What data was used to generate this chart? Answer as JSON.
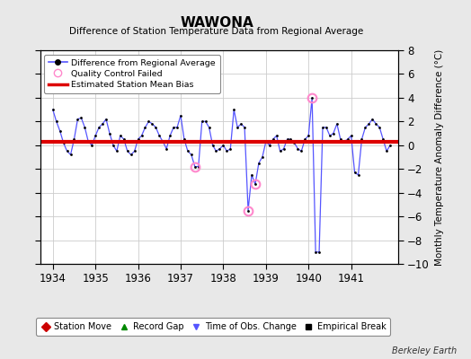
{
  "title": "WAWONA",
  "subtitle": "Difference of Station Temperature Data from Regional Average",
  "ylabel": "Monthly Temperature Anomaly Difference (°C)",
  "ylim": [
    -10,
    8
  ],
  "yticks": [
    -10,
    -8,
    -6,
    -4,
    -2,
    0,
    2,
    4,
    6,
    8
  ],
  "xlim": [
    1933.7,
    1942.1
  ],
  "xticks": [
    1934,
    1935,
    1936,
    1937,
    1938,
    1939,
    1940,
    1941
  ],
  "bg_color": "#e8e8e8",
  "plot_bg_color": "#ffffff",
  "line_color": "#5555ff",
  "marker_color": "#000000",
  "bias_color": "#dd0000",
  "bias_value": 0.3,
  "qc_fail_color": "#ff88cc",
  "time_series": [
    [
      1934.0,
      3.0
    ],
    [
      1934.083,
      2.0
    ],
    [
      1934.167,
      1.2
    ],
    [
      1934.25,
      0.2
    ],
    [
      1934.333,
      -0.5
    ],
    [
      1934.417,
      -0.8
    ],
    [
      1934.5,
      0.5
    ],
    [
      1934.583,
      2.2
    ],
    [
      1934.667,
      2.3
    ],
    [
      1934.75,
      1.5
    ],
    [
      1934.833,
      0.3
    ],
    [
      1934.917,
      0.0
    ],
    [
      1935.0,
      0.8
    ],
    [
      1935.083,
      1.5
    ],
    [
      1935.167,
      1.8
    ],
    [
      1935.25,
      2.2
    ],
    [
      1935.333,
      1.0
    ],
    [
      1935.417,
      0.0
    ],
    [
      1935.5,
      -0.5
    ],
    [
      1935.583,
      0.8
    ],
    [
      1935.667,
      0.5
    ],
    [
      1935.75,
      -0.5
    ],
    [
      1935.833,
      -0.8
    ],
    [
      1935.917,
      -0.5
    ],
    [
      1936.0,
      0.5
    ],
    [
      1936.083,
      0.8
    ],
    [
      1936.167,
      1.5
    ],
    [
      1936.25,
      2.0
    ],
    [
      1936.333,
      1.8
    ],
    [
      1936.417,
      1.5
    ],
    [
      1936.5,
      0.8
    ],
    [
      1936.583,
      0.3
    ],
    [
      1936.667,
      -0.3
    ],
    [
      1936.75,
      0.8
    ],
    [
      1936.833,
      1.5
    ],
    [
      1936.917,
      1.5
    ],
    [
      1937.0,
      2.5
    ],
    [
      1937.083,
      0.5
    ],
    [
      1937.167,
      -0.5
    ],
    [
      1937.25,
      -0.8
    ],
    [
      1937.333,
      -1.8
    ],
    [
      1937.417,
      -1.8
    ],
    [
      1937.5,
      2.0
    ],
    [
      1937.583,
      2.0
    ],
    [
      1937.667,
      1.5
    ],
    [
      1937.75,
      0.0
    ],
    [
      1937.833,
      -0.5
    ],
    [
      1937.917,
      -0.3
    ],
    [
      1938.0,
      0.0
    ],
    [
      1938.083,
      -0.5
    ],
    [
      1938.167,
      -0.3
    ],
    [
      1938.25,
      3.0
    ],
    [
      1938.333,
      1.5
    ],
    [
      1938.417,
      1.8
    ],
    [
      1938.5,
      1.5
    ],
    [
      1938.583,
      -5.5
    ],
    [
      1938.667,
      -2.5
    ],
    [
      1938.75,
      -3.3
    ],
    [
      1938.833,
      -1.5
    ],
    [
      1938.917,
      -1.0
    ],
    [
      1939.0,
      0.3
    ],
    [
      1939.083,
      0.0
    ],
    [
      1939.167,
      0.5
    ],
    [
      1939.25,
      0.8
    ],
    [
      1939.333,
      -0.5
    ],
    [
      1939.417,
      -0.3
    ],
    [
      1939.5,
      0.5
    ],
    [
      1939.583,
      0.5
    ],
    [
      1939.667,
      0.2
    ],
    [
      1939.75,
      -0.3
    ],
    [
      1939.833,
      -0.5
    ],
    [
      1939.917,
      0.5
    ],
    [
      1940.0,
      0.8
    ],
    [
      1940.083,
      4.0
    ],
    [
      1940.167,
      -9.0
    ],
    [
      1940.25,
      -9.0
    ],
    [
      1940.333,
      1.5
    ],
    [
      1940.417,
      1.5
    ],
    [
      1940.5,
      0.8
    ],
    [
      1940.583,
      1.0
    ],
    [
      1940.667,
      1.8
    ],
    [
      1940.75,
      0.5
    ],
    [
      1940.833,
      0.3
    ],
    [
      1940.917,
      0.5
    ],
    [
      1941.0,
      0.8
    ],
    [
      1941.083,
      -2.3
    ],
    [
      1941.167,
      -2.5
    ],
    [
      1941.25,
      0.5
    ],
    [
      1941.333,
      1.5
    ],
    [
      1941.417,
      1.8
    ],
    [
      1941.5,
      2.2
    ],
    [
      1941.583,
      1.8
    ],
    [
      1941.667,
      1.5
    ],
    [
      1941.75,
      0.5
    ],
    [
      1941.833,
      -0.5
    ],
    [
      1941.917,
      0.0
    ]
  ],
  "qc_fail_points": [
    [
      1937.333,
      -1.8
    ],
    [
      1938.583,
      -5.5
    ],
    [
      1938.75,
      -3.3
    ],
    [
      1940.083,
      4.0
    ]
  ]
}
